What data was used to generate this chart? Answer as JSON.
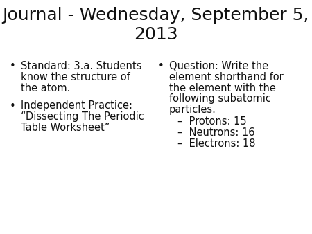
{
  "title_line1": "Journal - Wednesday, September 5,",
  "title_line2": "2013",
  "title_fontsize": 18,
  "title_color": "#111111",
  "background_color": "#ffffff",
  "left_bullet1_line1": "Standard: 3.a. Students",
  "left_bullet1_line2": "know the structure of",
  "left_bullet1_line3": "the atom.",
  "left_bullet2_line1": "Independent Practice:",
  "left_bullet2_line2": "“Dissecting The Periodic",
  "left_bullet2_line3": "Table Worksheet”",
  "right_bullet1_line1": "Question: Write the",
  "right_bullet1_line2": "element shorthand for",
  "right_bullet1_line3": "the element with the",
  "right_bullet1_line4": "following subatomic",
  "right_bullet1_line5": "particles.",
  "right_sub1": "–  Protons: 15",
  "right_sub2": "–  Neutrons: 16",
  "right_sub3": "–  Electrons: 18",
  "body_fontsize": 10.5,
  "text_color": "#111111"
}
